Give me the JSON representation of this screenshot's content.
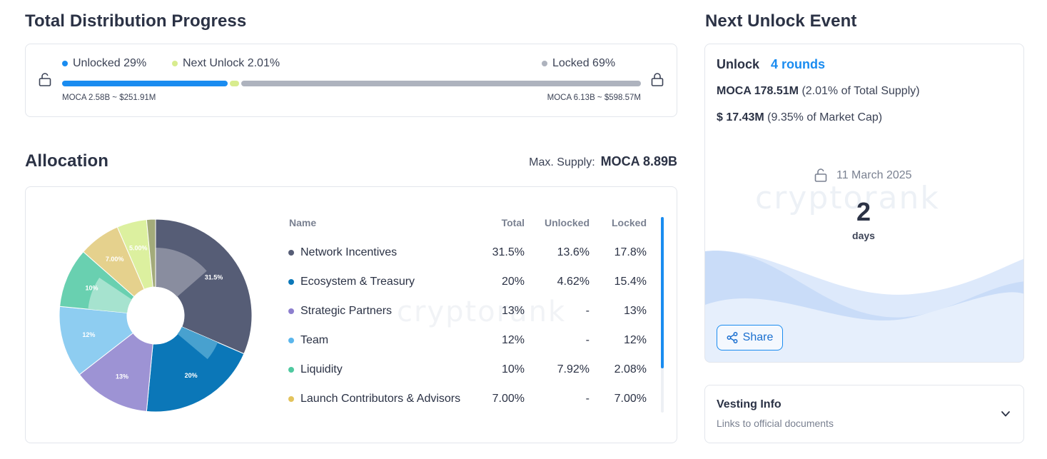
{
  "distribution": {
    "title": "Total Distribution Progress",
    "legend": [
      {
        "label": "Unlocked 29%",
        "color": "#1a8cf0"
      },
      {
        "label": "Next Unlock 2.01%",
        "color": "#d8ec8e"
      },
      {
        "label": "Locked 69%",
        "color": "#aeb3be"
      }
    ],
    "unlocked_pct": 29,
    "next_unlock_pct": 2.01,
    "locked_pct": 69,
    "unlocked_caption": "MOCA 2.58B ~ $251.91M",
    "locked_caption": "MOCA 6.13B ~ $598.57M"
  },
  "allocation": {
    "title": "Allocation",
    "max_supply_label": "Max. Supply:",
    "max_supply_value": "MOCA 8.89B",
    "columns": {
      "name": "Name",
      "total": "Total",
      "unlocked": "Unlocked",
      "locked": "Locked"
    },
    "rows": [
      {
        "name": "Network Incentives",
        "total": "31.5%",
        "unlocked": "13.6%",
        "locked": "17.8%",
        "color": "#565d76"
      },
      {
        "name": "Ecosystem & Treasury",
        "total": "20%",
        "unlocked": "4.62%",
        "locked": "15.4%",
        "color": "#0b77b8"
      },
      {
        "name": "Strategic Partners",
        "total": "13%",
        "unlocked": "-",
        "locked": "13%",
        "color": "#8d7fce"
      },
      {
        "name": "Team",
        "total": "12%",
        "unlocked": "-",
        "locked": "12%",
        "color": "#5bb6ec"
      },
      {
        "name": "Liquidity",
        "total": "10%",
        "unlocked": "7.92%",
        "locked": "2.08%",
        "color": "#4fc9a0"
      },
      {
        "name": "Launch Contributors & Advisors",
        "total": "7.00%",
        "unlocked": "-",
        "locked": "7.00%",
        "color": "#e3c35c"
      }
    ],
    "watermark": "cryptorank"
  },
  "chart_data": {
    "type": "pie",
    "series": [
      {
        "name": "Network Incentives",
        "value": 31.5,
        "label": "31.5%",
        "outer": "#565d76",
        "inner": "#898d9f"
      },
      {
        "name": "Ecosystem & Treasury",
        "value": 20,
        "label": "20%",
        "outer": "#0b77b8",
        "inner": "#48a1cf"
      },
      {
        "name": "Strategic Partners",
        "value": 13,
        "label": "13%",
        "outer": "#9d93d4",
        "inner": "#9d93d4"
      },
      {
        "name": "Team",
        "value": 12,
        "label": "12%",
        "outer": "#8ecdf1",
        "inner": "#8ecdf1"
      },
      {
        "name": "Liquidity",
        "value": 10,
        "label": "10%",
        "outer": "#69d0b0",
        "inner": "#a6e3cf"
      },
      {
        "name": "Launch Contributors & Advisors",
        "value": 7,
        "label": "7.00%",
        "outer": "#e5d18d",
        "inner": "#efdfae"
      },
      {
        "name": "",
        "value": 5,
        "label": "5.00%",
        "outer": "#dcf09f",
        "inner": "#e9f5c1"
      },
      {
        "name": "",
        "value": 1.5,
        "label": "",
        "outer": "#a3ab7a",
        "inner": "#bcc29a"
      }
    ],
    "inner_fractions": [
      0.432,
      0.231,
      0,
      0,
      0.792,
      0,
      0,
      0
    ]
  },
  "next_unlock": {
    "title": "Next Unlock Event",
    "unlock_label": "Unlock",
    "rounds_link": "4 rounds",
    "amount_value": "MOCA 178.51M",
    "amount_note": "(2.01% of Total Supply)",
    "usd_value": "$ 17.43M",
    "usd_note": "(9.35% of Market Cap)",
    "date": "11 March 2025",
    "days_count": "2",
    "days_label": "days",
    "share_label": "Share",
    "watermark": "cryptorank"
  },
  "vesting": {
    "title": "Vesting Info",
    "subtitle": "Links to official documents"
  }
}
